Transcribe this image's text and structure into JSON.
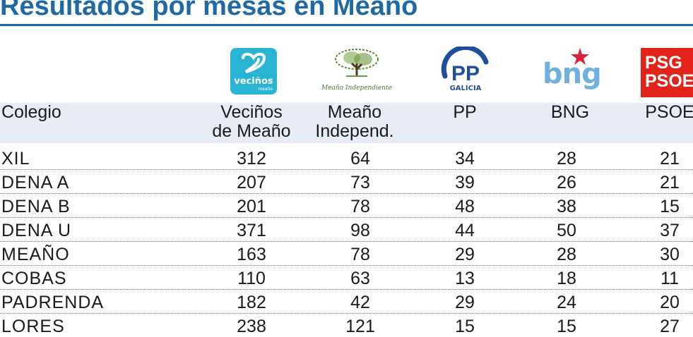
{
  "title": "Resultados por mesas en Meaño",
  "logos": {
    "vecinos": {
      "name": "veciños",
      "sub": "meaño",
      "color": "#2ab4d4"
    },
    "meano": {
      "name": "Meaño Independiente",
      "color": "#4e7a2c"
    },
    "pp": {
      "mark": "PP",
      "sub": "GALICIA",
      "color": "#1f4e9c"
    },
    "bng": {
      "name": "bng",
      "color": "#6fb0de",
      "star_color": "#d6223b"
    },
    "psoe": {
      "line1": "PSG",
      "line2": "PSOE",
      "color": "#e2231a"
    }
  },
  "colors": {
    "title": "#1f6aa5",
    "header_band": "#e6edf7"
  },
  "table": {
    "headers": [
      {
        "line1": "Colegio",
        "line2": ""
      },
      {
        "line1": "Veciños",
        "line2": "de Meaño"
      },
      {
        "line1": "Meaño",
        "line2": "Independ."
      },
      {
        "line1": "PP",
        "line2": ""
      },
      {
        "line1": "BNG",
        "line2": ""
      },
      {
        "line1": "PSOE",
        "line2": ""
      }
    ],
    "rows": [
      [
        "XIL",
        "312",
        "64",
        "34",
        "28",
        "21"
      ],
      [
        "DENA A",
        "207",
        "73",
        "39",
        "26",
        "21"
      ],
      [
        "DENA B",
        "201",
        "78",
        "48",
        "38",
        "15"
      ],
      [
        "DENA U",
        "371",
        "98",
        "44",
        "50",
        "37"
      ],
      [
        "MEAÑO",
        "163",
        "78",
        "29",
        "28",
        "30"
      ],
      [
        "COBAS",
        "110",
        "63",
        "13",
        "18",
        "11"
      ],
      [
        "PADRENDA",
        "182",
        "42",
        "29",
        "24",
        "20"
      ],
      [
        "LORES",
        "238",
        "121",
        "15",
        "15",
        "27"
      ]
    ]
  }
}
